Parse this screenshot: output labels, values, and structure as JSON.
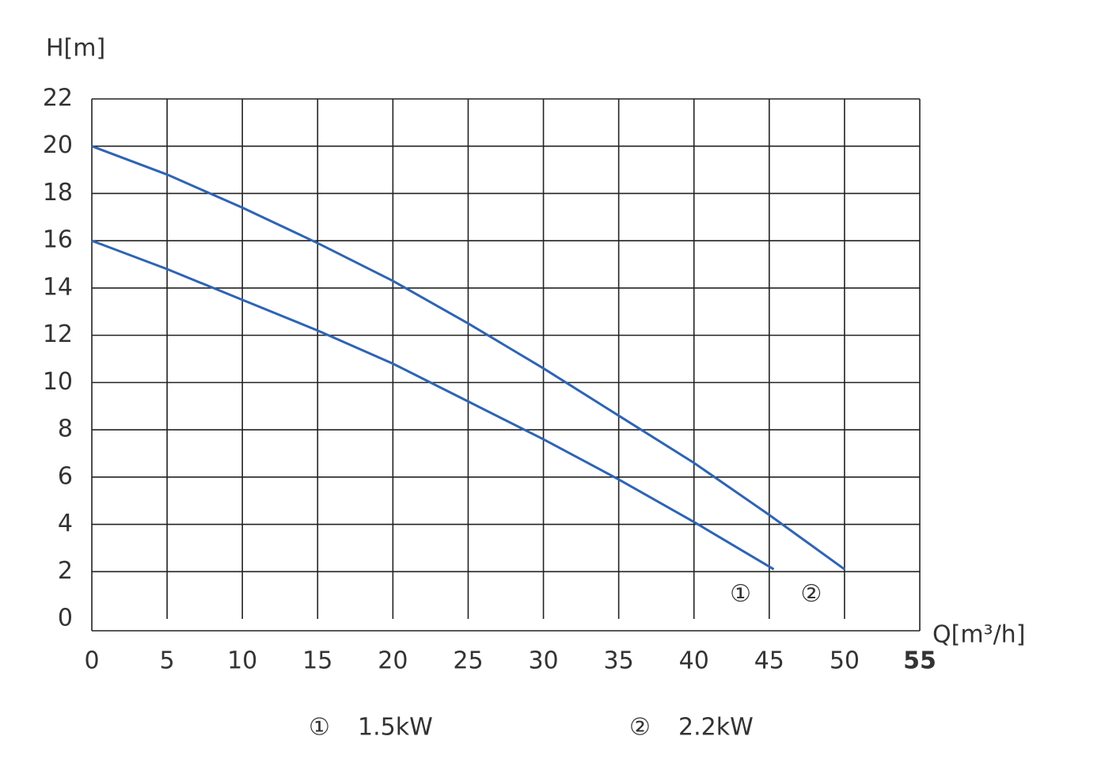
{
  "chart_data": {
    "type": "line",
    "ylabel": "H[m]",
    "xlabel": "Q[m³/h]",
    "xlim": [
      0,
      55
    ],
    "xticks": [
      0,
      5,
      10,
      15,
      20,
      25,
      30,
      35,
      40,
      45,
      50,
      55
    ],
    "ylim": [
      0,
      22
    ],
    "yticks": [
      0,
      2,
      4,
      6,
      8,
      10,
      12,
      14,
      16,
      18,
      20,
      22
    ],
    "grid": true,
    "series": [
      {
        "name": "1.5kW",
        "marker": "①",
        "color": "#2e64b4",
        "x": [
          0,
          5,
          10,
          15,
          20,
          25,
          30,
          35,
          40,
          45.3
        ],
        "values": [
          16,
          14.8,
          13.5,
          12.2,
          10.8,
          9.2,
          7.6,
          5.9,
          4.1,
          2.1
        ]
      },
      {
        "name": "2.2kW",
        "marker": "②",
        "color": "#2e64b4",
        "x": [
          0,
          5,
          10,
          15,
          20,
          25,
          30,
          35,
          40,
          45,
          50
        ],
        "values": [
          20,
          18.8,
          17.4,
          15.9,
          14.3,
          12.5,
          10.6,
          8.6,
          6.6,
          4.4,
          2.1
        ]
      }
    ]
  }
}
